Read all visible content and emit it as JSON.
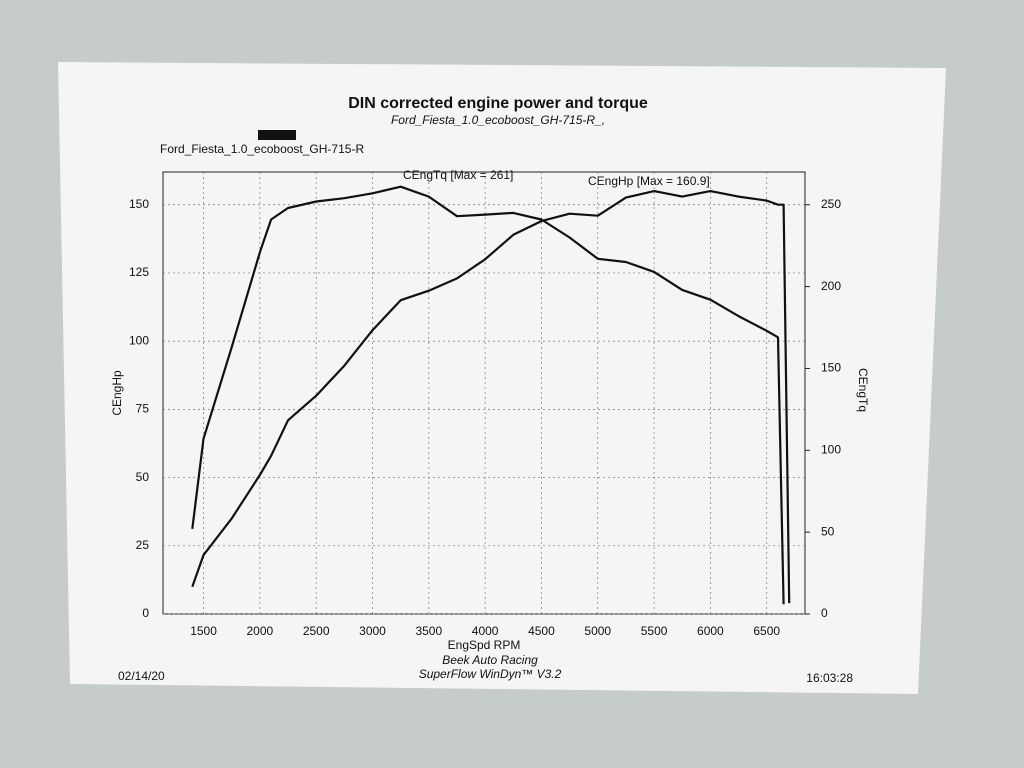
{
  "chart_data": {
    "type": "line",
    "title": "DIN corrected engine power and torque",
    "subtitle": "Ford_Fiesta_1.0_ecoboost_GH-715-R_,",
    "run_label": "Ford_Fiesta_1.0_ecoboost_GH-715-R",
    "x_label": "EngSpd RPM",
    "annotations": [
      "CEngTq [Max = 261]",
      "CEngHp [Max = 160.9]"
    ],
    "footer": {
      "date": "02/14/20",
      "company": "Beek Auto Racing",
      "software": "SuperFlow WinDyn™ V3.2",
      "time": "16:03:28"
    },
    "x": [
      1400,
      1500,
      1750,
      2000,
      2100,
      2250,
      2500,
      2750,
      3000,
      3250,
      3500,
      3750,
      4000,
      4250,
      4500,
      4750,
      5000,
      5250,
      5500,
      5750,
      6000,
      6250,
      6500,
      6600,
      6650,
      6700
    ],
    "series": [
      {
        "name": "CEngHp",
        "color": "#111111",
        "values": [
          10,
          21.6,
          35,
          51,
          58,
          71,
          80,
          91,
          104,
          115,
          118.5,
          123,
          130,
          139,
          144,
          146.7,
          146,
          152.6,
          155,
          153,
          155,
          153,
          151.5,
          150,
          150,
          4
        ]
      },
      {
        "name": "CEngTq",
        "color": "#111111",
        "axis": "y2",
        "values": [
          52,
          107,
          163,
          221,
          241,
          248,
          252,
          254,
          257,
          261,
          255,
          243,
          244,
          245,
          241,
          230,
          217,
          215,
          209,
          198,
          192,
          182,
          173,
          169,
          6,
          null
        ]
      }
    ],
    "xlim": [
      1140,
      6840
    ],
    "xticks": [
      1500,
      2000,
      2500,
      3000,
      3500,
      4000,
      4500,
      5000,
      5500,
      6000,
      6500
    ],
    "ylim": [
      0,
      162
    ],
    "yticks": [
      0,
      25,
      50,
      75,
      100,
      125,
      150
    ],
    "y2lim": [
      0,
      270
    ],
    "y2ticks": [
      0,
      50,
      100,
      150,
      200,
      250
    ],
    "grid": true
  }
}
